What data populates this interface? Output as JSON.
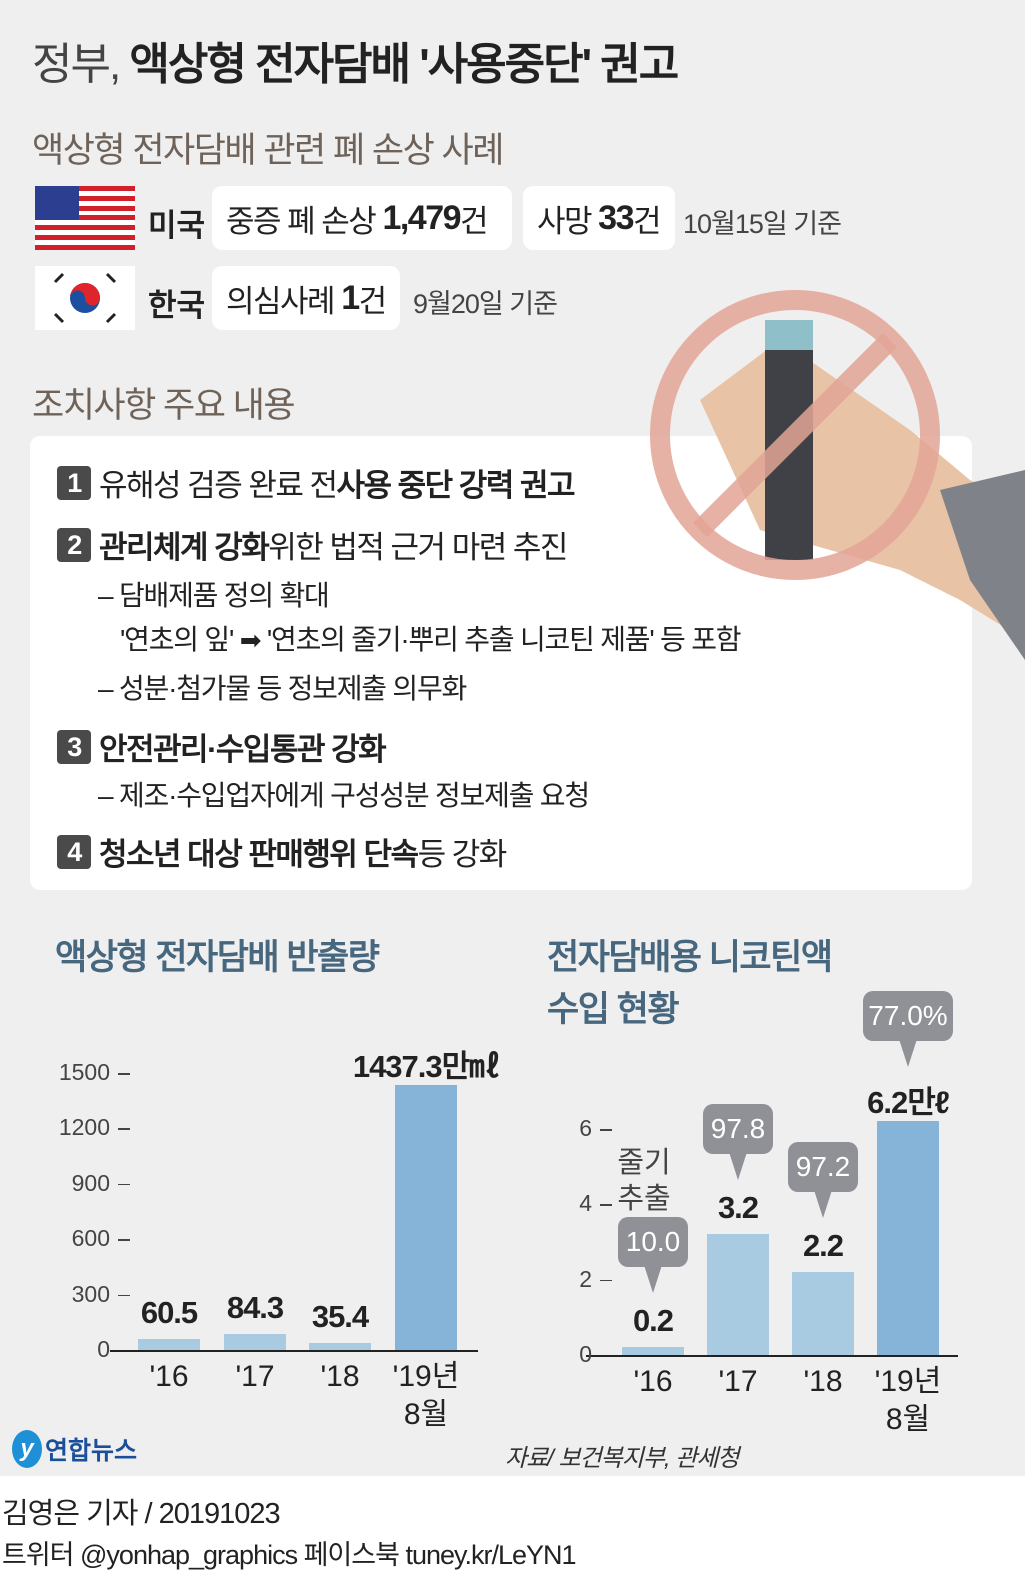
{
  "title": {
    "light": "정부,",
    "bold": "액상형 전자담배 '사용중단' 권고"
  },
  "cases": {
    "heading": "액상형 전자담배 관련 폐 손상 사례",
    "us": {
      "country": "미국",
      "box1_text": "중증 폐 손상",
      "box1_num": "1,479",
      "box1_unit": "건",
      "box2_text": "사망",
      "box2_num": "33",
      "box2_unit": "건",
      "note": "10월15일 기준"
    },
    "kr": {
      "country": "한국",
      "box_text": "의심사례",
      "box_num": "1",
      "box_unit": "건",
      "note": "9월20일 기준"
    }
  },
  "measures": {
    "heading": "조치사항 주요 내용",
    "items": [
      {
        "num": "1",
        "pre": "유해성 검증 완료 전 ",
        "bold": "사용 중단 강력 권고",
        "post": ""
      },
      {
        "num": "2",
        "pre": "",
        "bold": "관리체계 강화",
        "post": " 위한 법적 근거 마련 추진"
      },
      {
        "num": "3",
        "pre": "",
        "bold": "안전관리·수입통관 강화",
        "post": ""
      },
      {
        "num": "4",
        "pre": "",
        "bold": "청소년 대상 판매행위 단속",
        "post": " 등 강화"
      }
    ],
    "sub2": [
      "– 담배제품 정의 확대",
      "'연초의 잎'",
      "'연초의 줄기·뿌리 추출 니코틴 제품' 등 포함",
      "– 성분·첨가물 등 정보제출 의무화"
    ],
    "sub3": "– 제조·수입업자에게 구성성분 정보제출 요청"
  },
  "colors": {
    "bar_light": "#a9cbe2",
    "bar_dark": "#86b4d8",
    "bubble": "#8f9196",
    "title_blue": "#47677f",
    "prohibit": "#e3a596"
  },
  "chart_data": [
    {
      "type": "bar",
      "title": "액상형 전자담배 반출량",
      "categories": [
        "'16",
        "'17",
        "'18",
        "'19년 8월"
      ],
      "values": [
        60.5,
        84.3,
        35.4,
        1437.3
      ],
      "value_labels": [
        "60.5",
        "84.3",
        "35.4",
        "1437.3만㎖"
      ],
      "unit": "만㎖",
      "ylim": [
        0,
        1500
      ],
      "yticks": [
        "0",
        "300",
        "600",
        "900",
        "1200",
        "1500"
      ],
      "grid": false
    },
    {
      "type": "bar",
      "title": "전자담배용 니코틴액 수입 현황",
      "title_lines": [
        "전자담배용 니코틴액",
        "수입 현황"
      ],
      "categories": [
        "'16",
        "'17",
        "'18",
        "'19년 8월"
      ],
      "values": [
        0.2,
        3.2,
        2.2,
        6.2
      ],
      "value_labels": [
        "0.2",
        "3.2",
        "2.2",
        "6.2만ℓ"
      ],
      "unit": "만ℓ",
      "ylim": [
        0,
        6
      ],
      "yticks": [
        "0",
        "2",
        "4",
        "6"
      ],
      "annotation_label": "줄기 추출",
      "annotations": [
        "10.0",
        "97.8",
        "97.2",
        "77.0%"
      ],
      "grid": false
    }
  ],
  "source": "자료/ 보건복지부, 관세청",
  "logo": "연합뉴스",
  "footer": {
    "byline": "김영은 기자 / 20191023",
    "social": "트위터 @yonhap_graphics  페이스북 tuney.kr/LeYN1"
  }
}
